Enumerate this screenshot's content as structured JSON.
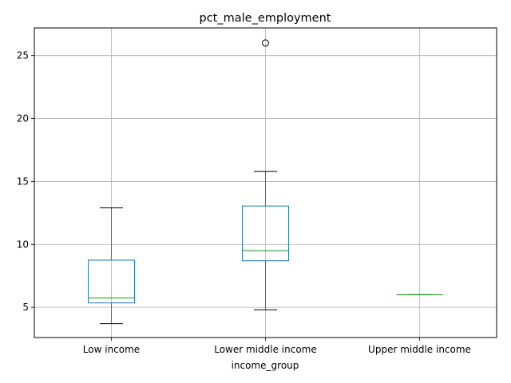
{
  "chart_data": {
    "type": "box",
    "title": "pct_male_employment",
    "xlabel": "income_group",
    "ylabel": "",
    "categories": [
      "Low income",
      "Lower middle income",
      "Upper middle income"
    ],
    "ylim": [
      2.6,
      27.2
    ],
    "yticks": [
      5,
      10,
      15,
      20,
      25
    ],
    "grid": true,
    "boxes": [
      {
        "category": "Low income",
        "whislo": 3.7,
        "q1": 5.35,
        "med": 5.75,
        "q3": 8.75,
        "whishi": 12.9,
        "fliers": []
      },
      {
        "category": "Lower middle income",
        "whislo": 4.8,
        "q1": 8.7,
        "med": 9.5,
        "q3": 13.05,
        "whishi": 15.8,
        "fliers": [
          26.0
        ]
      },
      {
        "category": "Upper middle income",
        "whislo": 6.0,
        "q1": 6.0,
        "med": 6.0,
        "q3": 6.0,
        "whishi": 6.0,
        "fliers": []
      }
    ],
    "colors": {
      "box": "#1f77b4",
      "median": "#2ca02c",
      "whisker_cap": "#000000",
      "grid": "#b0b0b0",
      "flier": "#000000"
    }
  }
}
